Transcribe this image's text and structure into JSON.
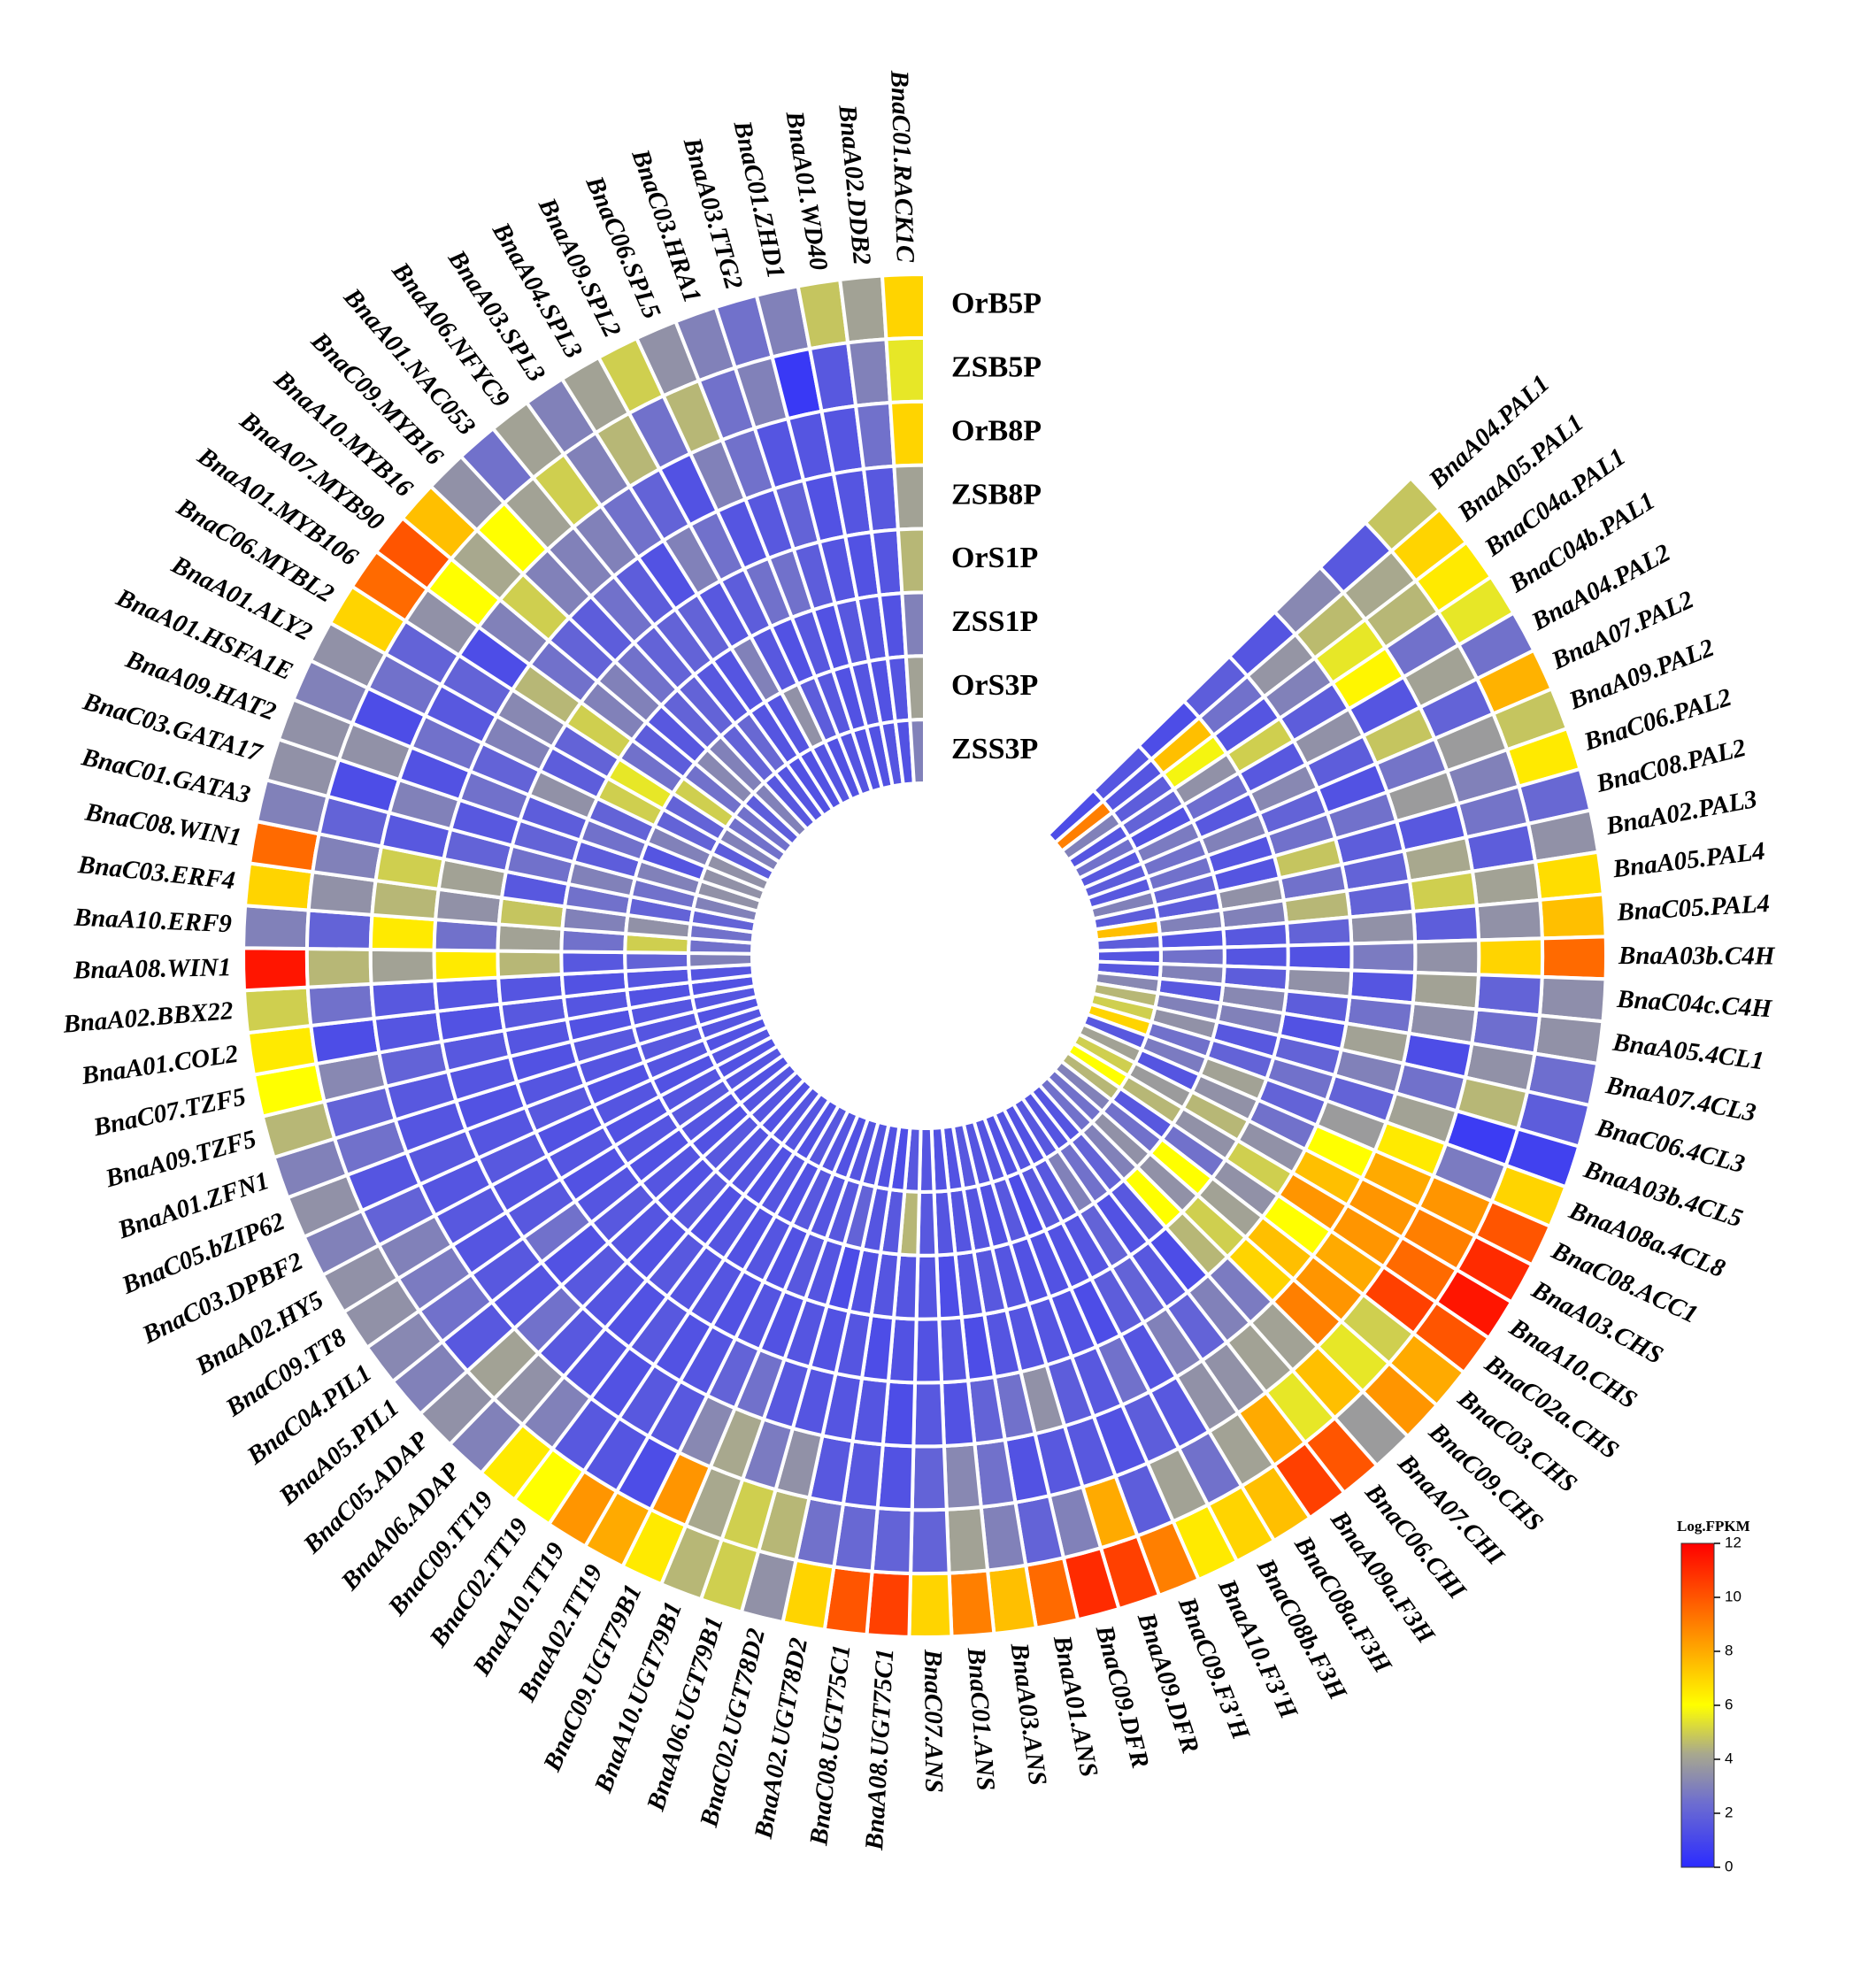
{
  "chart_data": {
    "type": "heatmap",
    "layout": "circular",
    "samples": [
      "OrB5P",
      "ZSB5P",
      "OrB8P",
      "ZSB8P",
      "OrS1P",
      "ZSS1P",
      "OrS3P",
      "ZSS3P"
    ],
    "genes": [
      "BnaA04.PAL1",
      "BnaA05.PAL1",
      "BnaC04a.PAL1",
      "BnaC04b.PAL1",
      "BnaA04.PAL2",
      "BnaA07.PAL2",
      "BnaA09.PAL2",
      "BnaC06.PAL2",
      "BnaC08.PAL2",
      "BnaA02.PAL3",
      "BnaA05.PAL4",
      "BnaC05.PAL4",
      "BnaA03b.C4H",
      "BnaC04c.C4H",
      "BnaA05.4CL1",
      "BnaA07.4CL3",
      "BnaC06.4CL3",
      "BnaA03b.4CL5",
      "BnaA08a.4CL8",
      "BnaC08.ACC1",
      "BnaA03.CHS",
      "BnaA10.CHS",
      "BnaC02a.CHS",
      "BnaC03.CHS",
      "BnaC09.CHS",
      "BnaA07.CHI",
      "BnaC06.CHI",
      "BnaA09a.F3H",
      "BnaC08a.F3H",
      "BnaC08b.F3H",
      "BnaA10.F3'H",
      "BnaC09.F3'H",
      "BnaA09.DFR",
      "BnaC09.DFR",
      "BnaA01.ANS",
      "BnaA03.ANS",
      "BnaC01.ANS",
      "BnaC07.ANS",
      "BnaA08.UGT75C1",
      "BnaC08.UGT75C1",
      "BnaA02.UGT78D2",
      "BnaC02.UGT78D2",
      "BnaA06.UGT79B1",
      "BnaA10.UGT79B1",
      "BnaC09.UGT79B1",
      "BnaA02.TT19",
      "BnaA10.TT19",
      "BnaC02.TT19",
      "BnaC09.TT19",
      "BnaA06.ADAP",
      "BnaC05.ADAP",
      "BnaA05.PIL1",
      "BnaC04.PIL1",
      "BnaC09.TT8",
      "BnaA02.HY5",
      "BnaC03.DPBF2",
      "BnaC05.bZIP62",
      "BnaA01.ZFN1",
      "BnaA09.TZF5",
      "BnaC07.TZF5",
      "BnaA01.COL2",
      "BnaA02.BBX22",
      "BnaA08.WIN1",
      "BnaA10.ERF9",
      "BnaC03.ERF4",
      "BnaC08.WIN1",
      "BnaC01.GATA3",
      "BnaC03.GATA17",
      "BnaA09.HAT2",
      "BnaA01.HSFA1E",
      "BnaA01.ALY2",
      "BnaC06.MYBL2",
      "BnaA01.MYB106",
      "BnaA07.MYB90",
      "BnaA10.MYB16",
      "BnaC09.MYB16",
      "BnaA01.NAC053",
      "BnaA06.NFYC9",
      "BnaA03.SPL3",
      "BnaA04.SPL3",
      "BnaA09.SPL2",
      "BnaC06.SPL5",
      "BnaC03.HRA1",
      "BnaA03.TTG2",
      "BnaC01.ZHD1",
      "BnaA01.WD40",
      "BnaA02.DDB2",
      "BnaC01.RACK1C"
    ],
    "values": [
      [
        4.8,
        1.6,
        3.2,
        1.5,
        1.8,
        1.2,
        1.5,
        1.2
      ],
      [
        7.0,
        4.2,
        4.6,
        3.6,
        2.5,
        7.5,
        1.5,
        9.0
      ],
      [
        6.5,
        4.5,
        5.5,
        3.0,
        1.5,
        5.8,
        1.8,
        3.0
      ],
      [
        5.5,
        2.5,
        6.2,
        1.8,
        5.0,
        3.5,
        2.0,
        1.5
      ],
      [
        2.5,
        4.0,
        1.5,
        3.5,
        1.6,
        2.4,
        1.4,
        2.5
      ],
      [
        7.8,
        2.0,
        4.8,
        1.8,
        3.2,
        1.6,
        2.8,
        1.6
      ],
      [
        4.8,
        3.8,
        2.6,
        1.4,
        2.0,
        3.0,
        2.5,
        1.8
      ],
      [
        6.5,
        3.0,
        3.8,
        2.5,
        2.5,
        1.5,
        2.5,
        1.6
      ],
      [
        2.2,
        2.6,
        1.6,
        1.8,
        4.8,
        1.5,
        2.0,
        3.0
      ],
      [
        3.5,
        1.8,
        4.2,
        2.0,
        2.5,
        3.5,
        1.8,
        1.8
      ],
      [
        6.8,
        4.0,
        5.0,
        2.0,
        4.5,
        3.0,
        3.0,
        7.5
      ],
      [
        7.5,
        3.5,
        1.8,
        3.5,
        2.0,
        1.6,
        1.5,
        1.8
      ],
      [
        9.5,
        7.0,
        3.5,
        2.8,
        1.4,
        1.5,
        2.5,
        1.5
      ],
      [
        3.4,
        2.0,
        4.0,
        1.5,
        3.5,
        1.8,
        3.0,
        1.6
      ],
      [
        3.5,
        2.4,
        3.4,
        2.5,
        1.8,
        3.2,
        1.6,
        3.2
      ],
      [
        2.4,
        3.5,
        1.2,
        4.0,
        1.4,
        3.0,
        3.0,
        4.5
      ],
      [
        1.8,
        4.5,
        2.5,
        3.0,
        2.0,
        1.6,
        3.5,
        5.0
      ],
      [
        0.8,
        0.6,
        4.0,
        2.0,
        2.5,
        2.0,
        2.5,
        7.0
      ],
      [
        7.0,
        2.8,
        6.5,
        3.8,
        2.0,
        4.0,
        2.8,
        1.6
      ],
      [
        10.0,
        8.5,
        8.0,
        6.0,
        2.5,
        3.5,
        1.5,
        4.0
      ],
      [
        11.0,
        9.0,
        8.5,
        7.5,
        3.5,
        4.5,
        3.8,
        5.0
      ],
      [
        11.5,
        9.5,
        8.5,
        8.5,
        5.0,
        3.5,
        4.5,
        6.0
      ],
      [
        10.0,
        10.5,
        8.0,
        6.0,
        3.5,
        2.5,
        1.6,
        4.5
      ],
      [
        8.0,
        5.0,
        8.5,
        7.5,
        4.0,
        6.0,
        2.5,
        3.0
      ],
      [
        8.5,
        5.5,
        9.0,
        7.0,
        5.0,
        3.5,
        3.5,
        2.5
      ],
      [
        3.8,
        7.5,
        4.0,
        2.8,
        4.5,
        6.0,
        3.0,
        2.5
      ],
      [
        10.0,
        5.5,
        4.0,
        3.0,
        1.2,
        1.6,
        2.0,
        1.5
      ],
      [
        10.5,
        8.0,
        3.5,
        2.0,
        1.6,
        1.4,
        2.5,
        1.5
      ],
      [
        7.5,
        4.0,
        3.5,
        3.0,
        2.0,
        2.0,
        3.0,
        1.6
      ],
      [
        7.0,
        2.5,
        1.6,
        1.5,
        1.8,
        1.5,
        1.6,
        1.4
      ],
      [
        6.5,
        4.0,
        1.8,
        2.5,
        1.2,
        1.4,
        1.6,
        1.5
      ],
      [
        9.0,
        1.8,
        1.4,
        1.6,
        1.4,
        1.4,
        1.2,
        1.4
      ],
      [
        10.5,
        8.0,
        1.6,
        1.8,
        1.5,
        1.4,
        1.6,
        1.5
      ],
      [
        11.0,
        3.0,
        1.6,
        3.5,
        1.5,
        1.5,
        1.4,
        1.5
      ],
      [
        9.5,
        2.0,
        1.4,
        2.5,
        1.5,
        1.6,
        1.5,
        1.6
      ],
      [
        7.5,
        3.0,
        2.5,
        2.0,
        1.2,
        1.5,
        1.5,
        1.4
      ],
      [
        9.0,
        4.0,
        3.2,
        1.4,
        1.5,
        1.2,
        1.5,
        1.4
      ],
      [
        7.0,
        2.0,
        2.0,
        1.6,
        1.4,
        1.5,
        1.6,
        1.5
      ],
      [
        10.5,
        2.0,
        1.4,
        1.2,
        1.4,
        1.5,
        4.5,
        1.6
      ],
      [
        10.0,
        2.2,
        1.6,
        1.5,
        1.2,
        1.5,
        1.6,
        1.2
      ],
      [
        7.0,
        2.5,
        1.6,
        1.5,
        1.5,
        1.4,
        1.5,
        1.4
      ],
      [
        3.5,
        4.5,
        3.5,
        1.5,
        1.4,
        1.2,
        2.0,
        1.5
      ],
      [
        5.0,
        5.0,
        2.8,
        1.6,
        1.5,
        1.5,
        1.6,
        1.5
      ],
      [
        4.5,
        4.2,
        4.2,
        2.5,
        1.4,
        1.6,
        1.5,
        1.4
      ],
      [
        6.5,
        8.5,
        3.2,
        2.0,
        1.5,
        1.4,
        1.6,
        1.5
      ],
      [
        8.0,
        1.2,
        1.6,
        1.5,
        1.4,
        1.5,
        1.4,
        1.6
      ],
      [
        8.5,
        1.5,
        1.6,
        1.4,
        1.5,
        1.4,
        1.5,
        1.4
      ],
      [
        6.0,
        1.6,
        1.4,
        1.6,
        1.5,
        1.5,
        1.4,
        1.5
      ],
      [
        6.5,
        3.0,
        1.5,
        1.4,
        1.6,
        1.4,
        1.5,
        1.5
      ],
      [
        3.0,
        3.5,
        1.6,
        1.5,
        1.4,
        1.6,
        1.5,
        1.4
      ],
      [
        3.5,
        4.0,
        2.5,
        1.6,
        1.5,
        1.4,
        1.6,
        1.5
      ],
      [
        3.0,
        1.6,
        1.5,
        1.4,
        1.6,
        1.5,
        1.4,
        1.5
      ],
      [
        3.2,
        2.5,
        1.6,
        2.5,
        1.5,
        1.4,
        1.5,
        1.4
      ],
      [
        3.5,
        2.8,
        1.5,
        1.6,
        1.4,
        1.5,
        1.6,
        1.5
      ],
      [
        3.5,
        3.0,
        1.6,
        1.5,
        1.5,
        1.4,
        1.5,
        1.4
      ],
      [
        3.0,
        2.0,
        1.5,
        1.6,
        1.4,
        1.5,
        1.4,
        1.5
      ],
      [
        3.5,
        1.5,
        1.6,
        1.5,
        1.6,
        1.4,
        1.5,
        1.4
      ],
      [
        3.0,
        2.5,
        1.5,
        1.4,
        1.5,
        1.5,
        1.6,
        1.5
      ],
      [
        4.5,
        2.0,
        1.6,
        1.5,
        1.4,
        1.6,
        1.5,
        1.4
      ],
      [
        6.0,
        3.2,
        2.0,
        1.6,
        1.5,
        1.4,
        1.5,
        1.5
      ],
      [
        6.5,
        1.2,
        1.5,
        1.4,
        1.6,
        1.5,
        1.4,
        1.4
      ],
      [
        5.0,
        2.5,
        1.6,
        1.5,
        1.5,
        1.4,
        1.5,
        1.5
      ],
      [
        11.5,
        4.5,
        4.0,
        6.5,
        4.5,
        1.6,
        2.0,
        3.0
      ],
      [
        3.0,
        2.0,
        6.5,
        2.5,
        4.0,
        2.5,
        5.0,
        2.5
      ],
      [
        7.0,
        3.5,
        4.5,
        3.5,
        4.8,
        3.0,
        3.5,
        2.5
      ],
      [
        9.5,
        3.0,
        5.0,
        4.0,
        1.6,
        2.5,
        2.0,
        2.0
      ],
      [
        3.0,
        2.0,
        1.6,
        2.0,
        2.5,
        3.0,
        2.5,
        3.0
      ],
      [
        3.5,
        1.2,
        3.0,
        1.6,
        2.0,
        1.8,
        3.0,
        3.5
      ],
      [
        3.5,
        3.5,
        1.4,
        2.5,
        1.8,
        2.5,
        1.5,
        3.5
      ],
      [
        3.0,
        1.2,
        2.5,
        2.0,
        3.5,
        2.0,
        3.0,
        3.5
      ],
      [
        3.5,
        2.5,
        1.6,
        3.0,
        1.8,
        5.0,
        2.0,
        1.8
      ],
      [
        7.0,
        2.0,
        2.0,
        3.2,
        2.0,
        5.5,
        2.0,
        3.0
      ],
      [
        9.5,
        3.5,
        1.2,
        4.5,
        5.0,
        2.5,
        5.0,
        2.5
      ],
      [
        10.0,
        6.0,
        3.0,
        2.5,
        3.0,
        1.8,
        2.5,
        2.5
      ],
      [
        7.5,
        4.2,
        5.0,
        2.0,
        3.0,
        1.6,
        3.2,
        1.8
      ],
      [
        3.5,
        6.0,
        3.0,
        1.8,
        2.5,
        2.0,
        3.0,
        3.0
      ],
      [
        2.5,
        4.0,
        3.0,
        2.5,
        2.0,
        2.0,
        2.0,
        1.6
      ],
      [
        4.0,
        5.0,
        3.0,
        1.8,
        2.0,
        1.6,
        2.2,
        1.5
      ],
      [
        3.0,
        3.0,
        2.5,
        1.4,
        2.0,
        1.5,
        1.5,
        1.4
      ],
      [
        4.0,
        4.5,
        2.0,
        3.0,
        1.6,
        3.0,
        1.5,
        1.4
      ],
      [
        5.0,
        2.5,
        1.4,
        2.5,
        1.8,
        1.6,
        3.5,
        1.5
      ],
      [
        3.5,
        4.5,
        3.0,
        1.5,
        2.5,
        1.4,
        1.8,
        1.4
      ],
      [
        3.0,
        2.5,
        2.5,
        1.6,
        2.5,
        1.6,
        1.6,
        1.5
      ],
      [
        2.5,
        3.0,
        1.5,
        2.0,
        1.8,
        1.4,
        1.4,
        1.4
      ],
      [
        3.0,
        0.5,
        1.5,
        1.4,
        1.5,
        1.6,
        1.5,
        1.4
      ],
      [
        4.8,
        1.6,
        1.5,
        1.5,
        1.4,
        1.5,
        1.4,
        1.5
      ],
      [
        4.0,
        3.0,
        2.5,
        1.6,
        1.5,
        1.4,
        1.5,
        1.4
      ],
      [
        7.0,
        5.5,
        7.0,
        4.0,
        4.5,
        3.0,
        4.0,
        3.0
      ]
    ],
    "color_scale": {
      "title": "Log.FPKM",
      "min": 0,
      "max": 12,
      "ticks": [
        0,
        2,
        4,
        6,
        8,
        10,
        12
      ],
      "colors": [
        "#2b2bff",
        "#6e6ecf",
        "#a8a88e",
        "#ffff00",
        "#ff9900",
        "#ff0000"
      ]
    }
  }
}
